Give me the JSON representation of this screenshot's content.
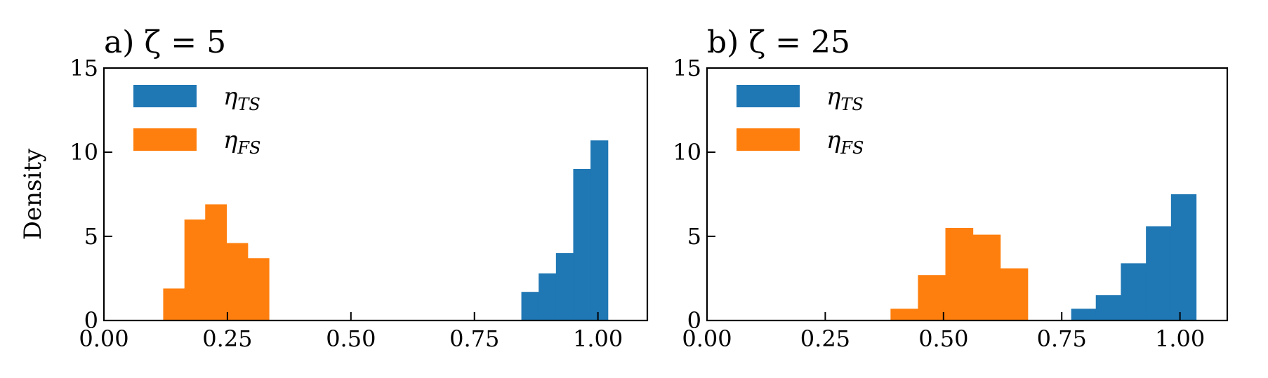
{
  "chart_data": [
    {
      "type": "histogram",
      "title": "a) ζ = 5",
      "ylabel": "Density",
      "xlabel": "",
      "xlim": [
        0.0,
        1.1
      ],
      "ylim": [
        0,
        15
      ],
      "xticks": [
        0.0,
        0.25,
        0.5,
        0.75,
        1.0
      ],
      "xtick_labels": [
        "0.00",
        "0.25",
        "0.50",
        "0.75",
        "1.00"
      ],
      "yticks": [
        0,
        5,
        10,
        15
      ],
      "ytick_labels": [
        "0",
        "5",
        "10",
        "15"
      ],
      "legend_position": "top-left",
      "series": [
        {
          "name": "η",
          "subscript": "TS",
          "color": "#1f77b4",
          "bins": [
            {
              "x0": 0.845,
              "x1": 0.88,
              "density": 1.7
            },
            {
              "x0": 0.88,
              "x1": 0.915,
              "density": 2.8
            },
            {
              "x0": 0.915,
              "x1": 0.95,
              "density": 4.0
            },
            {
              "x0": 0.95,
              "x1": 0.985,
              "density": 9.0
            },
            {
              "x0": 0.985,
              "x1": 1.02,
              "density": 10.7
            }
          ]
        },
        {
          "name": "η",
          "subscript": "FS",
          "color": "#ff7f0e",
          "bins": [
            {
              "x0": 0.12,
              "x1": 0.163,
              "density": 1.9
            },
            {
              "x0": 0.163,
              "x1": 0.205,
              "density": 6.0
            },
            {
              "x0": 0.205,
              "x1": 0.248,
              "density": 6.9
            },
            {
              "x0": 0.248,
              "x1": 0.291,
              "density": 4.6
            },
            {
              "x0": 0.291,
              "x1": 0.334,
              "density": 3.7
            }
          ]
        }
      ]
    },
    {
      "type": "histogram",
      "title": "b) ζ = 25",
      "ylabel": "",
      "xlabel": "",
      "xlim": [
        0.0,
        1.1
      ],
      "ylim": [
        0,
        15
      ],
      "xticks": [
        0.0,
        0.25,
        0.5,
        0.75,
        1.0
      ],
      "xtick_labels": [
        "0.00",
        "0.25",
        "0.50",
        "0.75",
        "1.00"
      ],
      "yticks": [
        0,
        5,
        10,
        15
      ],
      "ytick_labels": [
        "0",
        "5",
        "10",
        "15"
      ],
      "legend_position": "top-left",
      "series": [
        {
          "name": "η",
          "subscript": "TS",
          "color": "#1f77b4",
          "bins": [
            {
              "x0": 0.77,
              "x1": 0.822,
              "density": 0.7
            },
            {
              "x0": 0.822,
              "x1": 0.875,
              "density": 1.5
            },
            {
              "x0": 0.875,
              "x1": 0.928,
              "density": 3.4
            },
            {
              "x0": 0.928,
              "x1": 0.981,
              "density": 5.6
            },
            {
              "x0": 0.981,
              "x1": 1.034,
              "density": 7.5
            }
          ]
        },
        {
          "name": "η",
          "subscript": "FS",
          "color": "#ff7f0e",
          "bins": [
            {
              "x0": 0.388,
              "x1": 0.446,
              "density": 0.7
            },
            {
              "x0": 0.446,
              "x1": 0.504,
              "density": 2.7
            },
            {
              "x0": 0.504,
              "x1": 0.562,
              "density": 5.5
            },
            {
              "x0": 0.562,
              "x1": 0.62,
              "density": 5.1
            },
            {
              "x0": 0.62,
              "x1": 0.678,
              "density": 3.1
            }
          ]
        }
      ]
    }
  ]
}
